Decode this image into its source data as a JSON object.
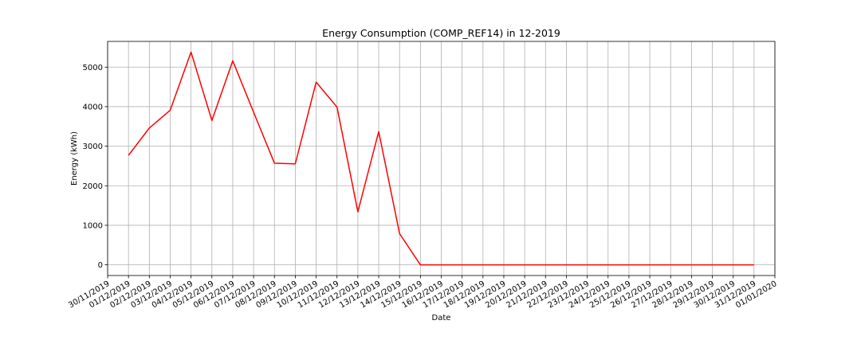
{
  "chart_data": {
    "type": "line",
    "title": "Energy Consumption (COMP_REF14) in 12-2019",
    "xlabel": "Date",
    "ylabel": "Energy (kWh)",
    "xlim": [
      "30/11/2019",
      "01/01/2020"
    ],
    "ylim": [
      -270,
      5650
    ],
    "grid": true,
    "x_ticks": [
      "30/11/2019",
      "01/12/2019",
      "02/12/2019",
      "03/12/2019",
      "04/12/2019",
      "05/12/2019",
      "06/12/2019",
      "07/12/2019",
      "08/12/2019",
      "09/12/2019",
      "10/12/2019",
      "11/12/2019",
      "12/12/2019",
      "13/12/2019",
      "14/12/2019",
      "15/12/2019",
      "16/12/2019",
      "17/12/2019",
      "18/12/2019",
      "19/12/2019",
      "20/12/2019",
      "21/12/2019",
      "22/12/2019",
      "23/12/2019",
      "24/12/2019",
      "25/12/2019",
      "26/12/2019",
      "27/12/2019",
      "28/12/2019",
      "29/12/2019",
      "30/12/2019",
      "31/12/2019",
      "01/01/2020"
    ],
    "y_ticks": [
      0,
      1000,
      2000,
      3000,
      4000,
      5000
    ],
    "series": [
      {
        "color": "#ff0000",
        "x": [
          "01/12/2019",
          "02/12/2019",
          "03/12/2019",
          "04/12/2019",
          "05/12/2019",
          "06/12/2019",
          "07/12/2019",
          "08/12/2019",
          "09/12/2019",
          "10/12/2019",
          "11/12/2019",
          "12/12/2019",
          "13/12/2019",
          "14/12/2019",
          "15/12/2019",
          "16/12/2019",
          "17/12/2019",
          "18/12/2019",
          "19/12/2019",
          "20/12/2019",
          "21/12/2019",
          "22/12/2019",
          "23/12/2019",
          "24/12/2019",
          "25/12/2019",
          "26/12/2019",
          "27/12/2019",
          "28/12/2019",
          "29/12/2019",
          "30/12/2019",
          "31/12/2019"
        ],
        "values": [
          2770,
          3460,
          3910,
          5380,
          3650,
          5160,
          3860,
          2570,
          2555,
          4620,
          3990,
          1340,
          3370,
          790,
          0,
          0,
          0,
          0,
          0,
          0,
          0,
          0,
          0,
          0,
          0,
          0,
          0,
          0,
          0,
          0,
          0
        ]
      }
    ]
  }
}
